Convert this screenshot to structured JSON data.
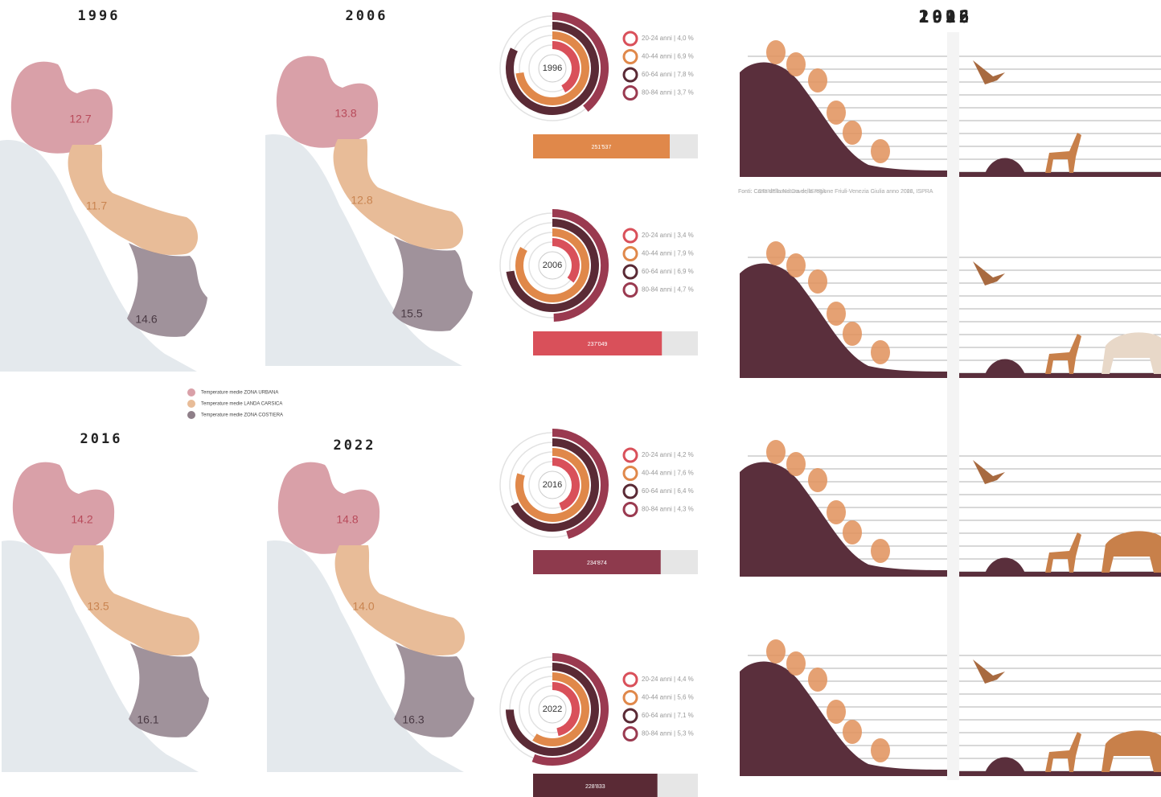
{
  "maps": [
    {
      "year": "1996",
      "urban": "12.7",
      "karst": "11.7",
      "coastal": "14.6"
    },
    {
      "year": "2006",
      "urban": "13.8",
      "karst": "12.8",
      "coastal": "15.5"
    },
    {
      "year": "2016",
      "urban": "14.2",
      "karst": "13.5",
      "coastal": "16.1"
    },
    {
      "year": "2022",
      "urban": "14.8",
      "karst": "14.0",
      "coastal": "16.3"
    }
  ],
  "legend": [
    {
      "label": "Temperature medie ZONA URBANA",
      "color": "#d9a0a8"
    },
    {
      "label": "Temperature medie LANDA CARSICA",
      "color": "#e8bc98"
    },
    {
      "label": "Temperature medie ZONA COSTIERA",
      "color": "#8f7f89"
    }
  ],
  "population": [
    {
      "year": "1996",
      "total": 251537,
      "total_label": "251'537",
      "bar_color": "#e0884a",
      "groups": [
        {
          "label": "20-24 anni | 4,0 %",
          "value": 4.0,
          "color": "#d9505a"
        },
        {
          "label": "40-44 anni | 6,9 %",
          "value": 6.9,
          "color": "#e0884a"
        },
        {
          "label": "60-64 anni | 7,8 %",
          "value": 7.8,
          "color": "#5a2a35"
        },
        {
          "label": "80-84 anni | 3,7 %",
          "value": 3.7,
          "color": "#9a3a50"
        }
      ]
    },
    {
      "year": "2006",
      "total": 237049,
      "total_label": "237'049",
      "bar_color": "#d9505a",
      "groups": [
        {
          "label": "20-24 anni | 3,4 %",
          "value": 3.4,
          "color": "#d9505a"
        },
        {
          "label": "40-44 anni | 7,9 %",
          "value": 7.9,
          "color": "#e0884a"
        },
        {
          "label": "60-64 anni | 6,9 %",
          "value": 6.9,
          "color": "#5a2a35"
        },
        {
          "label": "80-84 anni | 4,7 %",
          "value": 4.7,
          "color": "#9a3a50"
        }
      ]
    },
    {
      "year": "2016",
      "total": 234874,
      "total_label": "234'874",
      "bar_color": "#8e3a4d",
      "groups": [
        {
          "label": "20-24 anni | 4,2 %",
          "value": 4.2,
          "color": "#d9505a"
        },
        {
          "label": "40-44 anni | 7,6 %",
          "value": 7.6,
          "color": "#e0884a"
        },
        {
          "label": "60-64 anni | 6,4 %",
          "value": 6.4,
          "color": "#5a2a35"
        },
        {
          "label": "80-84 anni | 4,3 %",
          "value": 4.3,
          "color": "#9a3a50"
        }
      ]
    },
    {
      "year": "2022",
      "total": 228833,
      "total_label": "228'833",
      "bar_color": "#5a2a35",
      "groups": [
        {
          "label": "20-24 anni | 4,4 %",
          "value": 4.4,
          "color": "#d9505a"
        },
        {
          "label": "40-44 anni | 5,6 %",
          "value": 5.6,
          "color": "#e0884a"
        },
        {
          "label": "60-64 anni | 7,1 %",
          "value": 7.1,
          "color": "#5a2a35"
        },
        {
          "label": "80-84 anni | 5,3 %",
          "value": 5.3,
          "color": "#9a3a50"
        }
      ]
    }
  ],
  "ecosystems": [
    {
      "year": "1996",
      "source": "Fonti: CORINE Land Cover, ISPRA"
    },
    {
      "year": "2006",
      "source": "Fonti: Carta della Natura della regione Friuli-Venezia Giulia anno 2006, ISPRA"
    },
    {
      "year": "2016",
      "source": "Fonti: Carta della Natura della regione Friuli-Venezia Giulia anno 2016, ISPRA"
    },
    {
      "year": "2022",
      "source": "Fonti: Carta della Natura della regione Friuli-Venezia Giulia anno 2022, ISPRA"
    }
  ]
}
